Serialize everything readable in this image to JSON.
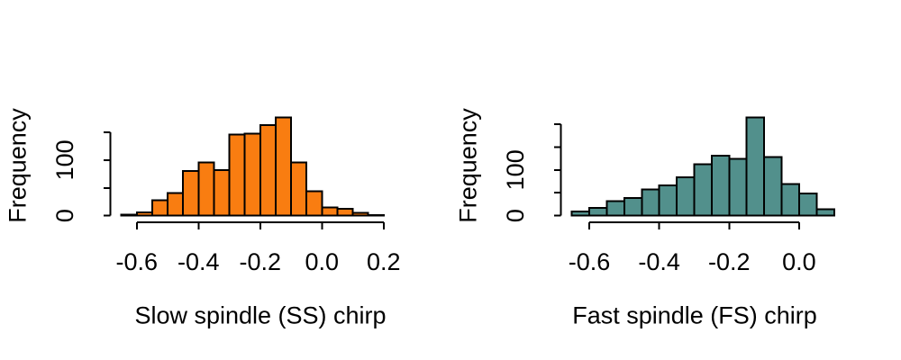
{
  "figure": {
    "background": "#ffffff",
    "text_color": "#000000",
    "grid": false,
    "legend": false
  },
  "chart_data": [
    {
      "type": "bar",
      "subtype": "histogram",
      "title": "Slow spindle (SS) chirp",
      "xlabel": "Slow spindle (SS) chirp",
      "ylabel": "Frequency",
      "bar_color": "#F97D11",
      "bar_border": "#000000",
      "bin_start": -0.65,
      "bin_width": 0.05,
      "counts": [
        2,
        6,
        28,
        41,
        80,
        96,
        82,
        146,
        148,
        163,
        177,
        96,
        44,
        15,
        12,
        5,
        1
      ],
      "x_ticks": [
        -0.6,
        -0.4,
        -0.2,
        0,
        0.2
      ],
      "x_tick_labels": [
        "-0.6",
        "-0.4",
        "-0.2",
        "0.0",
        "0.2"
      ],
      "y_ticks": [
        0,
        50,
        100,
        150
      ],
      "y_tick_labels": [
        "0",
        "",
        "100",
        ""
      ],
      "xlim": [
        -0.6,
        0.2
      ],
      "ylim": [
        0,
        150
      ],
      "legend_position": "none"
    },
    {
      "type": "bar",
      "subtype": "histogram",
      "title": "Fast spindle (FS) chirp",
      "xlabel": "Fast spindle (FS) chirp",
      "ylabel": "Frequency",
      "bar_color": "#52908C",
      "bar_border": "#000000",
      "bin_start": -0.65,
      "bin_width": 0.05,
      "counts": [
        9,
        17,
        32,
        39,
        57,
        66,
        84,
        112,
        131,
        124,
        215,
        128,
        69,
        48,
        14
      ],
      "x_ticks": [
        -0.6,
        -0.4,
        -0.2,
        0
      ],
      "x_tick_labels": [
        "-0.6",
        "-0.4",
        "-0.2",
        "0.0"
      ],
      "y_ticks": [
        0,
        50,
        100,
        150,
        200
      ],
      "y_tick_labels": [
        "0",
        "",
        "100",
        "",
        ""
      ],
      "xlim": [
        -0.6,
        0.0
      ],
      "ylim": [
        0,
        200
      ],
      "legend_position": "none"
    }
  ]
}
